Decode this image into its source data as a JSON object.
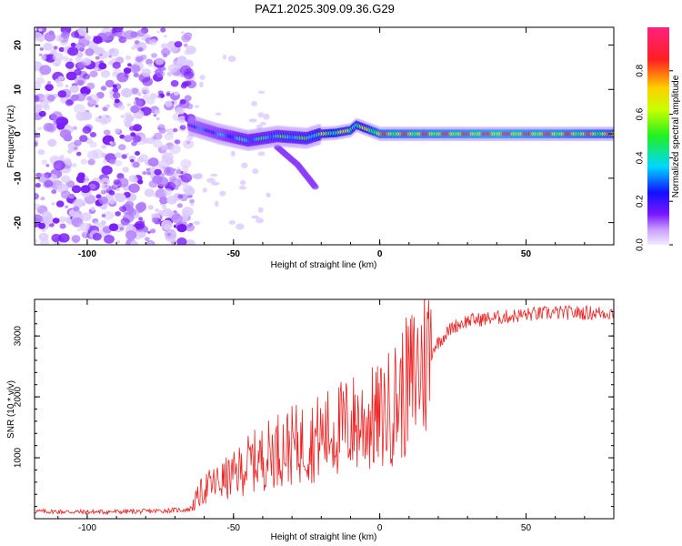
{
  "title": "PAZ1.2025.309.09.36.G29",
  "colors": {
    "series": "#ee2222",
    "ridge": "#cc1111",
    "noise": "#8a2be2"
  },
  "chart_data": [
    {
      "type": "heatmap",
      "title": "PAZ1.2025.309.09.36.G29",
      "xlabel": "Height of straight line (km)",
      "ylabel": "Frequency (Hz)",
      "xlim": [
        -118,
        80
      ],
      "ylim": [
        -25,
        24
      ],
      "x_ticks": [
        -100,
        -50,
        0,
        50
      ],
      "y_ticks": [
        -20,
        -10,
        0,
        10,
        20
      ],
      "colorbar": {
        "label": "Normalized spectral amplitude",
        "range": [
          0,
          1
        ],
        "ticks": [
          0.0,
          0.2,
          0.4,
          0.6,
          0.8
        ]
      },
      "ridge": {
        "x": [
          -65,
          -55,
          -45,
          -35,
          -25,
          -20,
          -15,
          -10,
          -8,
          0,
          20,
          40,
          60,
          80
        ],
        "y": [
          2,
          0,
          -1.5,
          -0.5,
          -1,
          0,
          0.2,
          0.8,
          2,
          0,
          0,
          0,
          0,
          0
        ],
        "peak_amplitude": [
          0.3,
          0.35,
          0.45,
          0.5,
          0.55,
          0.6,
          0.7,
          0.75,
          0.6,
          0.85,
          0.9,
          0.95,
          0.9,
          0.8
        ]
      },
      "noise_region_x": [
        -118,
        -64
      ],
      "branch": {
        "x": [
          -35,
          -28,
          -22
        ],
        "y": [
          -3,
          -7,
          -12
        ]
      }
    },
    {
      "type": "line",
      "title": "",
      "xlabel": "Height of straight line (km)",
      "ylabel": "SNR (10 * v/v)",
      "xlim": [
        -118,
        80
      ],
      "ylim": [
        0,
        3600
      ],
      "x_ticks": [
        -100,
        -50,
        0,
        50
      ],
      "y_ticks": [
        1000,
        2000,
        3000
      ],
      "series": [
        {
          "name": "SNR",
          "x": [
            -118,
            -100,
            -80,
            -65,
            -60,
            -55,
            -50,
            -45,
            -40,
            -35,
            -30,
            -25,
            -20,
            -15,
            -10,
            -5,
            0,
            5,
            10,
            15,
            20,
            25,
            30,
            40,
            50,
            60,
            70,
            80
          ],
          "values": [
            120,
            110,
            120,
            150,
            500,
            600,
            700,
            900,
            1000,
            1150,
            1200,
            1250,
            1350,
            1450,
            1550,
            1600,
            1650,
            1900,
            2200,
            2600,
            2900,
            3150,
            3250,
            3300,
            3350,
            3380,
            3380,
            3380
          ]
        }
      ]
    }
  ]
}
